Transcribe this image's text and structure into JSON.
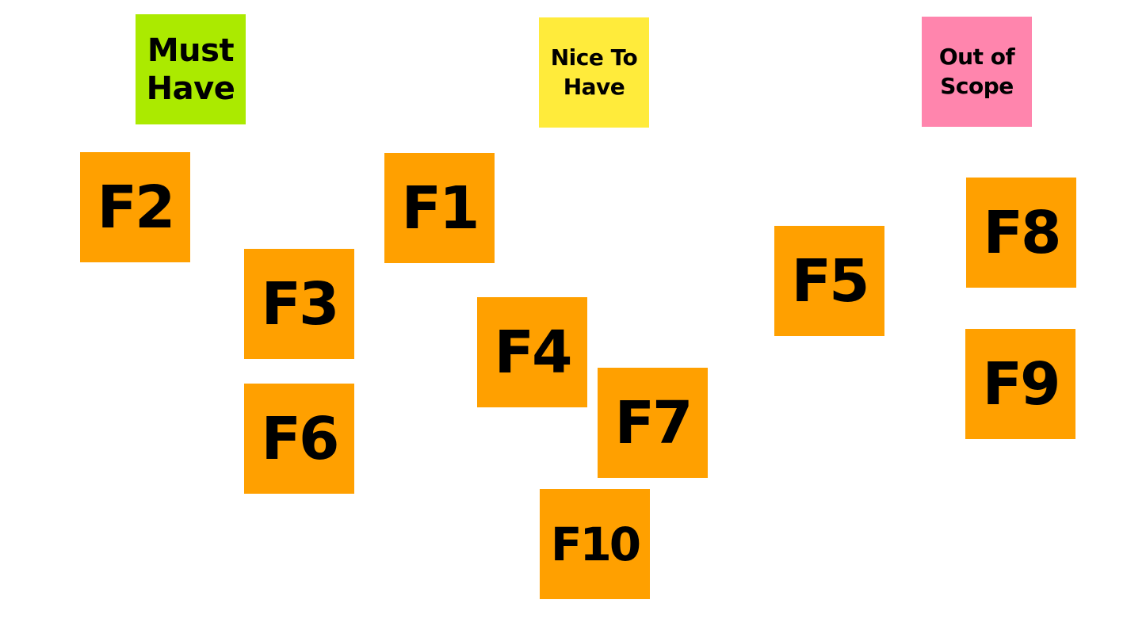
{
  "colors": {
    "canvas_background": "#ffffff",
    "must_have": "#abea00",
    "nice_to_have": "#ffeb3b",
    "out_of_scope": "#ff85ad",
    "feature": "#ffa000",
    "text": "#000000"
  },
  "categories": {
    "must_have": "Must\nHave",
    "nice_to_have": "Nice To\nHave",
    "out_of_scope": "Out of\nScope"
  },
  "features": {
    "f1": "F1",
    "f2": "F2",
    "f3": "F3",
    "f4": "F4",
    "f5": "F5",
    "f6": "F6",
    "f7": "F7",
    "f8": "F8",
    "f9": "F9",
    "f10": "F10"
  }
}
